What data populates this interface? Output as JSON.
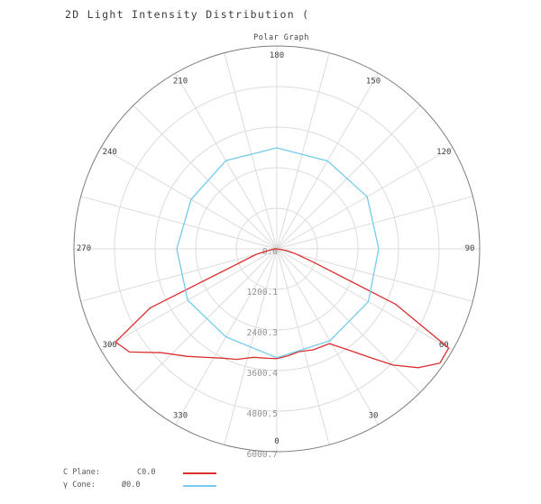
{
  "title": "2D Light Intensity Distribution (",
  "subtitle": "Polar Graph",
  "legend": {
    "rows": [
      {
        "label": "C Plane:",
        "value": "C0.0",
        "color": "#d93030"
      },
      {
        "label": "γ Cone:",
        "value": "Ø0.0",
        "color": "#74cbec"
      }
    ]
  },
  "chart_data": {
    "type": "line",
    "subtype": "polar",
    "title": "Polar Graph",
    "orientation": "0 degrees at bottom, angles increase toward the right side (counterclockwise on screen), 180 at top",
    "rmax": 6000.7,
    "ring_count": 5,
    "spoke_step_deg": 15,
    "grid": "on",
    "angle_labels": [
      0,
      30,
      60,
      90,
      120,
      150,
      180,
      210,
      240,
      270,
      300,
      330
    ],
    "radial_tick_labels": [
      "0.0",
      "1200.1",
      "2400.3",
      "3600.4",
      "4800.5",
      "6000.7"
    ],
    "colors": {
      "grid": "#dcdcdc",
      "outer_ring": "#7d7d7d"
    },
    "series": [
      {
        "id": "c-plane",
        "name": "C Plane",
        "value": "C0.0",
        "color": "#d93030",
        "closed": false,
        "points": [
          [
            270,
            0
          ],
          [
            277,
            150
          ],
          [
            285,
            620
          ],
          [
            295,
            4130
          ],
          [
            300,
            5510
          ],
          [
            305,
            5320
          ],
          [
            312,
            4590
          ],
          [
            320,
            4150
          ],
          [
            327,
            3830
          ],
          [
            334,
            3600
          ],
          [
            340,
            3480
          ],
          [
            348,
            3280
          ],
          [
            355,
            3250
          ],
          [
            0,
            3245
          ],
          [
            6,
            3180
          ],
          [
            12,
            3110
          ],
          [
            20,
            3175
          ],
          [
            29,
            3205
          ],
          [
            36,
            3730
          ],
          [
            41,
            4280
          ],
          [
            45,
            4860
          ],
          [
            50,
            5470
          ],
          [
            55,
            5890
          ],
          [
            60,
            5870
          ],
          [
            65,
            3870
          ],
          [
            70,
            1160
          ],
          [
            75,
            600
          ],
          [
            80,
            300
          ],
          [
            90,
            0
          ]
        ]
      },
      {
        "id": "gamma-cone",
        "name": "γ Cone",
        "value": "Ø0.0",
        "color": "#74cbec",
        "closed": true,
        "points": [
          [
            0,
            3220
          ],
          [
            30,
            3140
          ],
          [
            60,
            3125
          ],
          [
            90,
            3013
          ],
          [
            120,
            3085
          ],
          [
            150,
            3003
          ],
          [
            180,
            2987
          ],
          [
            210,
            3013
          ],
          [
            240,
            2925
          ],
          [
            270,
            2960
          ],
          [
            300,
            3043
          ],
          [
            330,
            3008
          ]
        ]
      }
    ]
  }
}
